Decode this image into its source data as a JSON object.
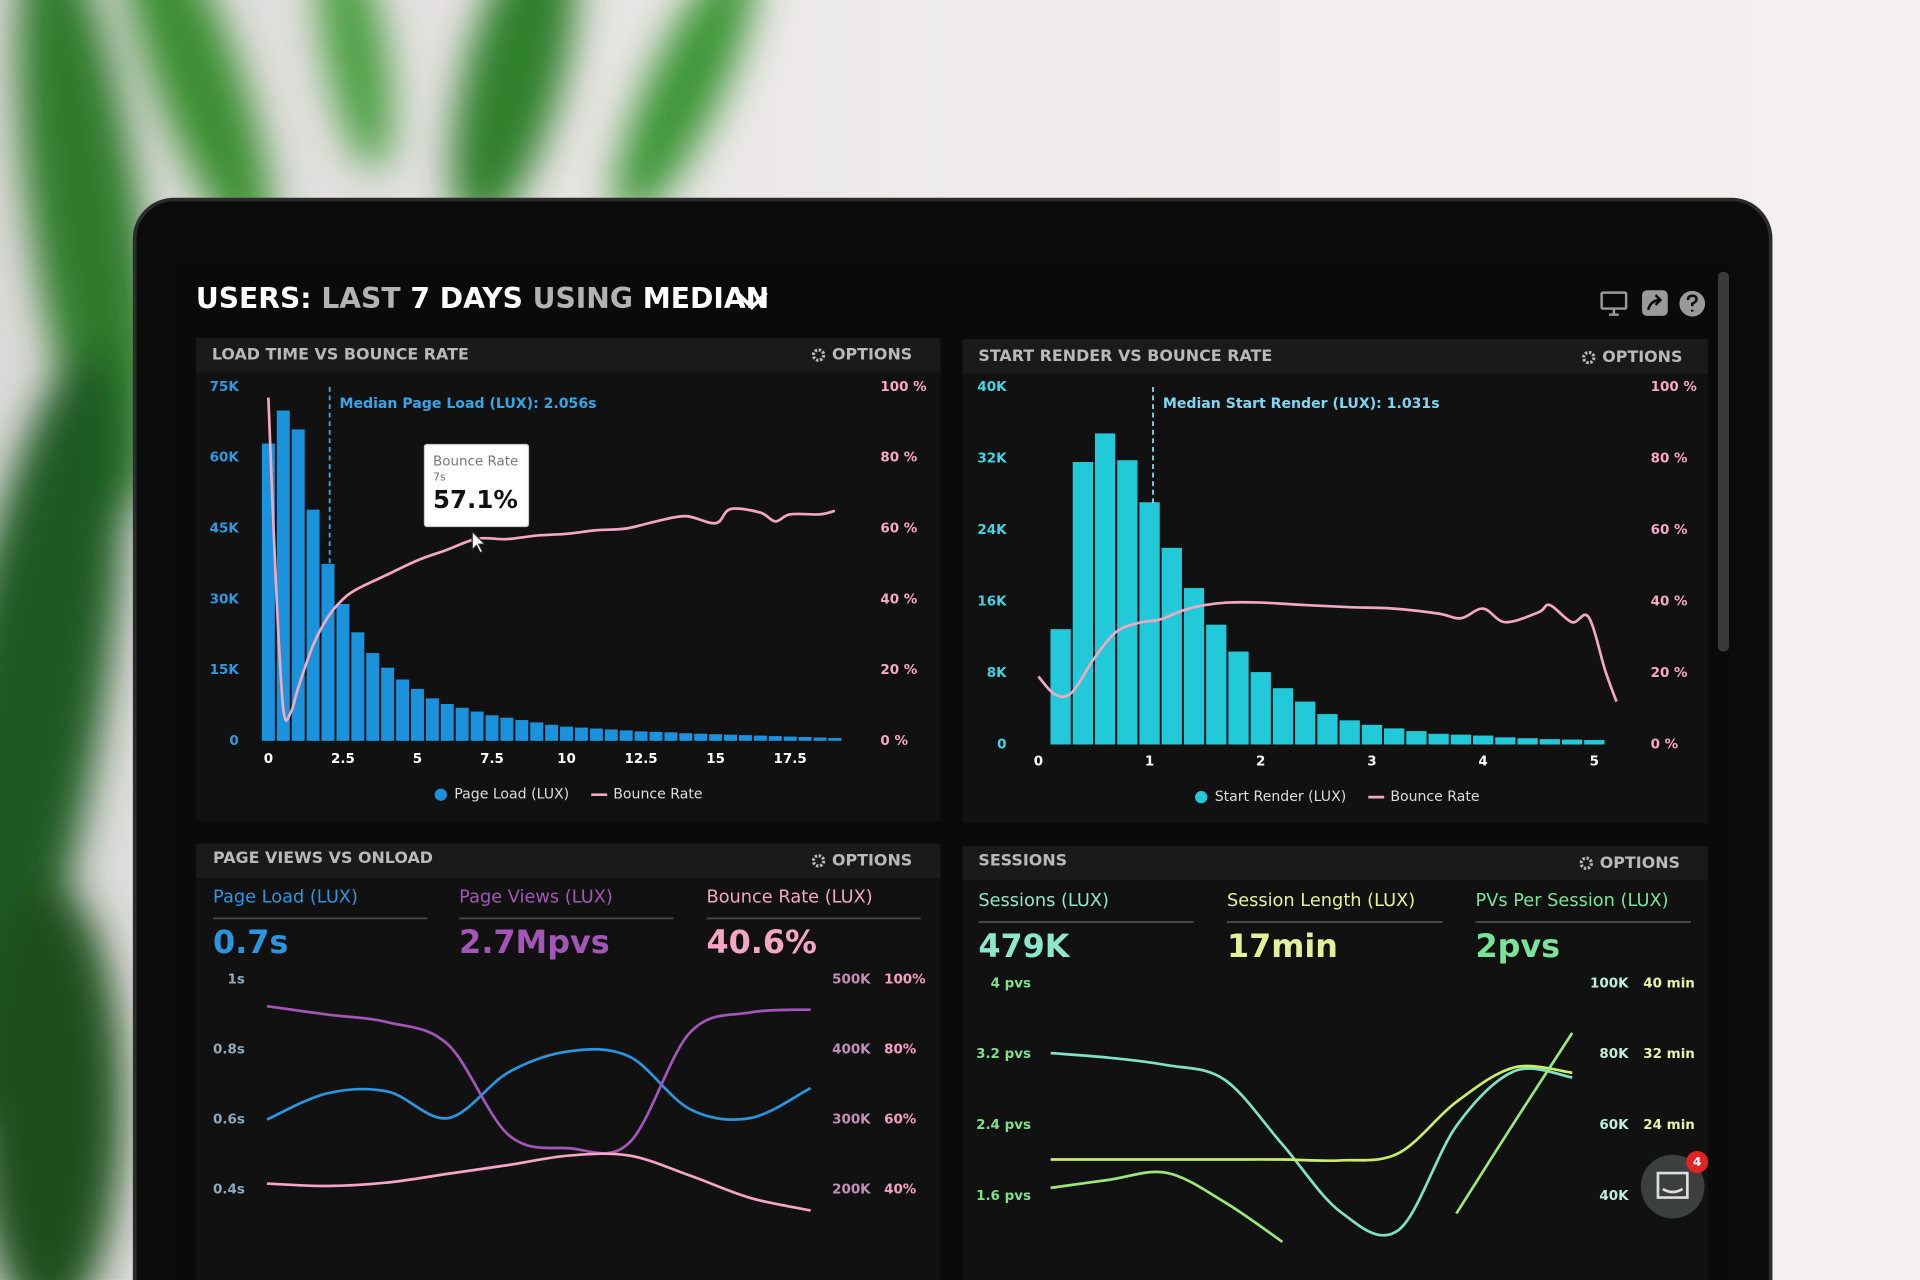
{
  "header": {
    "title_parts": [
      {
        "text": "USERS:",
        "color": "#ffffff"
      },
      {
        "text": "LAST",
        "color": "#b3b3b3"
      },
      {
        "text": "7 DAYS",
        "color": "#ffffff"
      },
      {
        "text": "USING",
        "color": "#b3b3b3"
      },
      {
        "text": "MEDIAN",
        "color": "#ffffff"
      }
    ]
  },
  "chat": {
    "badge": "4"
  },
  "chart_data": [
    {
      "type": "histogram",
      "title": "LOAD TIME VS BOUNCE RATE",
      "options": "OPTIONS",
      "bins": [
        -0.25,
        0.25,
        0.75,
        1.25,
        1.75,
        2.25,
        2.75,
        3.25,
        3.75,
        4.25,
        4.75,
        5.25,
        5.75,
        6.25,
        6.75,
        7.25,
        7.75,
        8.25,
        8.75,
        9.25,
        9.75,
        10.25,
        10.75,
        11.25,
        11.75,
        12.25,
        12.75,
        13.25,
        13.75,
        14.25,
        14.75,
        15.25,
        15.75,
        16.25,
        16.75,
        17.25,
        17.75,
        18.25,
        18.75,
        19.25
      ],
      "series": [
        {
          "name": "Page Load (LUX)",
          "color": "#1b93dc",
          "values": [
            63000,
            70000,
            66000,
            49000,
            37500,
            29000,
            23000,
            18600,
            15500,
            13000,
            11000,
            9000,
            7800,
            7000,
            6200,
            5400,
            4900,
            4400,
            3900,
            3400,
            3000,
            2800,
            2600,
            2400,
            2200,
            2000,
            1900,
            1800,
            1600,
            1500,
            1400,
            1300,
            1200,
            1100,
            1000,
            900,
            800,
            700,
            600
          ]
        },
        {
          "name": "Bounce Rate",
          "color": "#f2a7c2",
          "axis": "y2",
          "x": [
            0,
            0.25,
            0.5,
            0.75,
            1,
            1.5,
            2,
            2.5,
            3,
            4,
            5,
            6,
            7,
            8,
            9,
            10,
            11,
            12,
            13,
            14,
            15,
            15.5,
            16.5,
            17,
            17.5,
            18.5,
            19
          ],
          "values": [
            97,
            45,
            9,
            8,
            15,
            27,
            35,
            40,
            43,
            47,
            51,
            54,
            57.1,
            57,
            58,
            58.5,
            59.5,
            60,
            62,
            63.5,
            61.5,
            65.5,
            64.5,
            62,
            64,
            64,
            65
          ]
        }
      ],
      "xlim": [
        -0.5,
        19.5
      ],
      "xticks": [
        0,
        2.5,
        5,
        7.5,
        10,
        12.5,
        15,
        17.5
      ],
      "ylim": [
        0,
        75000
      ],
      "yticks": [
        0,
        {
          "value": 15000,
          "label": "15K"
        },
        {
          "value": 30000,
          "label": "30K"
        },
        {
          "value": 45000,
          "label": "45K"
        },
        {
          "value": 60000,
          "label": "60K"
        },
        {
          "value": 75000,
          "label": "75K"
        }
      ],
      "y2lim": [
        0,
        100
      ],
      "y2ticks": [
        {
          "value": 0,
          "label": "0 %"
        },
        {
          "value": 20,
          "label": "20 %"
        },
        {
          "value": 40,
          "label": "40 %"
        },
        {
          "value": 60,
          "label": "60 %"
        },
        {
          "value": 80,
          "label": "80 %"
        },
        {
          "value": 100,
          "label": "100 %"
        }
      ],
      "annotation": {
        "text": "Median Page Load (LUX): 2.056s",
        "x": 2.056
      },
      "tooltip": {
        "title": "Bounce Rate",
        "x_label": "7s",
        "value_label": "57.1%",
        "x": 7,
        "value": 57.1
      }
    },
    {
      "type": "histogram",
      "title": "START RENDER VS BOUNCE RATE",
      "options": "OPTIONS",
      "bins": [
        0.1,
        0.3,
        0.5,
        0.7,
        0.9,
        1.1,
        1.3,
        1.5,
        1.7,
        1.9,
        2.1,
        2.3,
        2.5,
        2.7,
        2.9,
        3.1,
        3.3,
        3.5,
        3.7,
        3.9,
        4.1,
        4.3,
        4.5,
        4.7,
        4.9,
        5.1
      ],
      "series": [
        {
          "name": "Start Render (LUX)",
          "color": "#22c9d9",
          "values": [
            12900,
            31600,
            34800,
            31800,
            27100,
            22000,
            17500,
            13400,
            10400,
            8100,
            6300,
            4800,
            3400,
            2700,
            2200,
            1800,
            1500,
            1200,
            1100,
            1000,
            800,
            700,
            600,
            550,
            500
          ]
        },
        {
          "name": "Bounce Rate",
          "color": "#f2a7c2",
          "axis": "y2",
          "x": [
            0,
            0.15,
            0.3,
            0.5,
            0.7,
            0.9,
            1.1,
            1.3,
            1.5,
            1.7,
            2,
            2.4,
            2.8,
            3.2,
            3.6,
            3.8,
            4,
            4.2,
            4.5,
            4.6,
            4.8,
            4.95,
            5.1,
            5.2
          ],
          "values": [
            19,
            14,
            14.5,
            24,
            31.5,
            34,
            35,
            37.5,
            39,
            39.7,
            39.7,
            39,
            38.4,
            38,
            36.6,
            35.3,
            38,
            34.2,
            37,
            39,
            34.2,
            35.6,
            20.5,
            12
          ]
        }
      ],
      "xlim": [
        -0.15,
        5.25
      ],
      "xticks": [
        0,
        1,
        2,
        3,
        4,
        5
      ],
      "ylim": [
        0,
        40000
      ],
      "yticks": [
        0,
        {
          "value": 8000,
          "label": "8K"
        },
        {
          "value": 16000,
          "label": "16K"
        },
        {
          "value": 24000,
          "label": "24K"
        },
        {
          "value": 32000,
          "label": "32K"
        },
        {
          "value": 40000,
          "label": "40K"
        }
      ],
      "y2lim": [
        0,
        100
      ],
      "y2ticks": [
        {
          "value": 0,
          "label": "0 %"
        },
        {
          "value": 20,
          "label": "20 %"
        },
        {
          "value": 40,
          "label": "40 %"
        },
        {
          "value": 60,
          "label": "60 %"
        },
        {
          "value": 80,
          "label": "80 %"
        },
        {
          "value": 100,
          "label": "100 %"
        }
      ],
      "annotation": {
        "text": "Median Start Render (LUX): 1.031s",
        "x": 1.031
      }
    },
    {
      "type": "line",
      "title": "PAGE VIEWS VS ONLOAD",
      "options": "OPTIONS",
      "stats": [
        {
          "label": "Page Load (LUX)",
          "value": "0.7s",
          "color": "#2b95dd"
        },
        {
          "label": "Page Views (LUX)",
          "value": "2.7Mpvs",
          "color": "#a456b8"
        },
        {
          "label": "Bounce Rate (LUX)",
          "value": "40.6%",
          "color": "#f4a6c4"
        }
      ],
      "categories": [
        null,
        null,
        null,
        null,
        null,
        null,
        null,
        null,
        null,
        null
      ],
      "series": [
        {
          "color": "#2b95dd",
          "axis": "y",
          "values": [
            0.6,
            0.675,
            0.68,
            0.604,
            0.735,
            0.795,
            0.78,
            0.63,
            0.604,
            0.69
          ]
        },
        {
          "color": "#a456b8",
          "axis": "y2",
          "values": [
            462000,
            450000,
            439000,
            407000,
            278000,
            259000,
            267000,
            424000,
            453000,
            457000
          ]
        },
        {
          "color": "#f4a6c4",
          "axis": "y3",
          "values": [
            41.7,
            41,
            42,
            44.5,
            47,
            49.7,
            49.7,
            44,
            37.6,
            34
          ]
        }
      ],
      "ylim": [
        0.3,
        1
      ],
      "yticks": [
        {
          "value": 1,
          "label": "1s"
        },
        {
          "value": 0.8,
          "label": "0.8s"
        },
        {
          "value": 0.6,
          "label": "0.6s"
        },
        {
          "value": 0.4,
          "label": "0.4s"
        }
      ],
      "y2lim": [
        150000,
        500000
      ],
      "y2ticks": [
        {
          "value": 500000,
          "label": "500K"
        },
        {
          "value": 400000,
          "label": "400K"
        },
        {
          "value": 300000,
          "label": "300K"
        },
        {
          "value": 200000,
          "label": "200K"
        }
      ],
      "y3lim": [
        30,
        100
      ],
      "y3ticks": [
        {
          "value": 100,
          "label": "100%"
        },
        {
          "value": 80,
          "label": "80%"
        },
        {
          "value": 60,
          "label": "60%"
        },
        {
          "value": 40,
          "label": "40%"
        }
      ]
    },
    {
      "type": "line",
      "title": "SESSIONS",
      "options": "OPTIONS",
      "stats": [
        {
          "label": "Sessions (LUX)",
          "value": "479K",
          "color": "#8ee6cc"
        },
        {
          "label": "Session Length (LUX)",
          "value": "17min",
          "color": "#e3f29a"
        },
        {
          "label": "PVs Per Session (LUX)",
          "value": "2pvs",
          "color": "#79e39a"
        }
      ],
      "categories": [
        null,
        null,
        null,
        null,
        null,
        null,
        null,
        null,
        null,
        null
      ],
      "series": [
        {
          "color": "#7fe3c4",
          "axis": "y2",
          "values": [
            80300,
            79000,
            76900,
            72800,
            54500,
            35500,
            30300,
            59700,
            75200,
            73400
          ]
        },
        {
          "color": "#c9ee6a",
          "axis": "y3",
          "values": [
            20.1,
            20.1,
            20.1,
            20.1,
            20.1,
            20,
            20.8,
            26.6,
            30.5,
            29.9
          ]
        },
        {
          "color": "#9be87c",
          "axis": "y",
          "values": [
            1.69,
            1.78,
            1.86,
            1.53,
            1.08,
            null,
            null,
            1.4,
            2.43,
            3.44
          ]
        }
      ],
      "ylim": [
        1,
        4
      ],
      "yticks": [
        {
          "value": 4,
          "label": "4 pvs"
        },
        {
          "value": 3.2,
          "label": "3.2 pvs"
        },
        {
          "value": 2.4,
          "label": "2.4 pvs"
        },
        {
          "value": 1.6,
          "label": "1.6 pvs"
        }
      ],
      "y2lim": [
        25000,
        100000
      ],
      "y2ticks": [
        {
          "value": 100000,
          "label": "100K"
        },
        {
          "value": 80000,
          "label": "80K"
        },
        {
          "value": 60000,
          "label": "60K"
        },
        {
          "value": 40000,
          "label": "40K"
        }
      ],
      "y3lim": [
        10,
        40
      ],
      "y3ticks": [
        {
          "value": 40,
          "label": "40 min"
        },
        {
          "value": 32,
          "label": "32 min"
        },
        {
          "value": 24,
          "label": "24 min"
        }
      ]
    }
  ]
}
